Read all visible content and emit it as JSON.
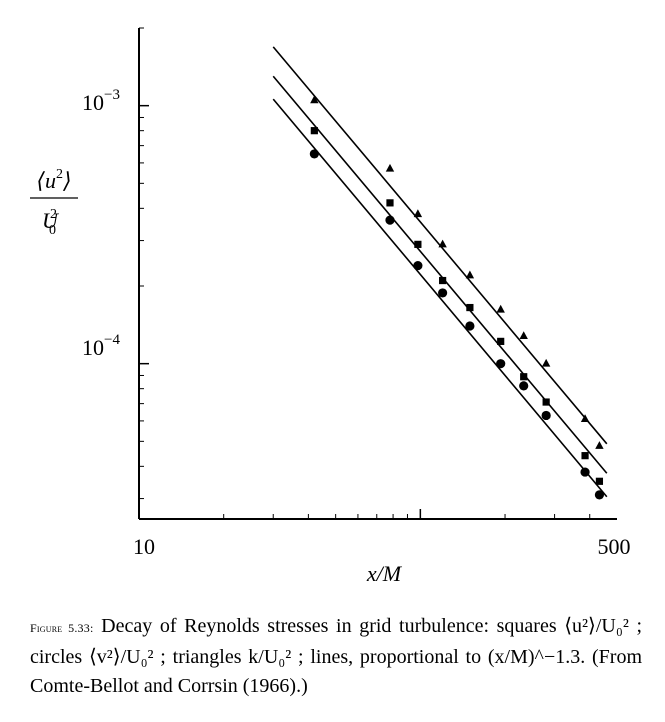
{
  "chart_data": {
    "type": "scatter",
    "xscale": "log",
    "yscale": "log",
    "xlim": [
      10,
      500
    ],
    "ylim": [
      2.5e-05,
      0.002
    ],
    "xlabel": "x/M",
    "ylabel": "⟨u²⟩/U₀²",
    "x_tick_labels": [
      "10",
      "500"
    ],
    "y_tick_labels": [
      {
        "base": "10",
        "exp": "−3",
        "value": 0.001
      },
      {
        "base": "10",
        "exp": "−4",
        "value": 0.0001
      }
    ],
    "series": [
      {
        "marker": "triangle",
        "x": [
          42,
          78,
          98,
          120,
          150,
          193,
          233,
          280,
          385,
          433
        ],
        "y": [
          0.00105,
          0.00057,
          0.00038,
          0.00029,
          0.00022,
          0.000162,
          0.000128,
          0.0001,
          6.1e-05,
          4.8e-05
        ],
        "line": {
          "x": [
            30,
            460
          ],
          "y": [
            0.00169,
            4.89e-05
          ]
        }
      },
      {
        "marker": "square",
        "x": [
          42,
          78,
          98,
          120,
          150,
          193,
          233,
          280,
          385,
          433
        ],
        "y": [
          0.0008,
          0.00042,
          0.00029,
          0.00021,
          0.000165,
          0.000122,
          8.9e-05,
          7.1e-05,
          4.4e-05,
          3.5e-05
        ],
        "line": {
          "x": [
            30,
            460
          ],
          "y": [
            0.0013,
            3.76e-05
          ]
        }
      },
      {
        "marker": "circle",
        "x": [
          42,
          78,
          98,
          120,
          150,
          193,
          233,
          280,
          385,
          433
        ],
        "y": [
          0.00065,
          0.00036,
          0.00024,
          0.000188,
          0.00014,
          0.0001,
          8.2e-05,
          6.3e-05,
          3.8e-05,
          3.1e-05
        ],
        "line": {
          "x": [
            30,
            460
          ],
          "y": [
            0.00106,
            3.05e-05
          ]
        }
      }
    ]
  },
  "caption": {
    "label": "Figure 5.33:",
    "text": "Decay of Reynolds stresses in grid turbulence: squares ⟨u²⟩/U₀² ; circles ⟨v²⟩/U₀² ; triangles k/U₀² ; lines, proportional to (x/M)^−1.3. (From Comte-Bellot and Corrsin (1966).)"
  }
}
